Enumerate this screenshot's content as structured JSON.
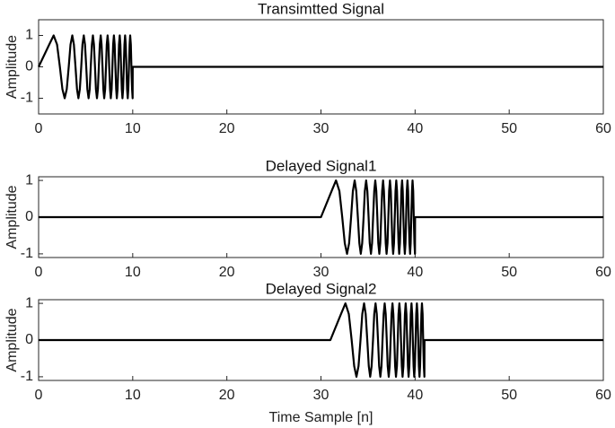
{
  "chart_data": [
    {
      "type": "line",
      "title": "Transimtted Signal",
      "ylabel": "Amplitude",
      "xlim": [
        0,
        60
      ],
      "ylim": [
        -1.5,
        1.5
      ],
      "xticks": [
        0,
        10,
        20,
        30,
        40,
        50,
        60
      ],
      "yticks": [
        -1,
        0,
        1
      ],
      "series": [
        {
          "color": "#000000",
          "x": [
            0,
            1.13,
            1.6,
            1.96,
            2.26,
            2.53,
            2.77,
            2.99,
            3.2,
            3.39,
            3.58,
            3.75,
            3.92,
            4.08,
            4.23,
            4.38,
            4.53,
            4.66,
            4.8,
            4.93,
            5.06,
            5.18,
            5.31,
            5.43,
            5.54,
            5.66,
            5.77,
            5.88,
            5.99,
            6.09,
            6.2,
            6.3,
            6.4,
            6.5,
            6.6,
            6.69,
            6.79,
            6.88,
            6.97,
            7.07,
            7.16,
            7.24,
            7.33,
            7.42,
            7.5,
            7.59,
            7.67,
            7.76,
            7.84,
            7.92,
            8,
            8.08,
            8.16,
            8.24,
            8.31,
            8.39,
            8.47,
            8.54,
            8.62,
            8.69,
            8.76,
            8.84,
            8.91,
            8.98,
            9.05,
            9.12,
            9.19,
            9.26,
            9.33,
            9.4,
            9.47,
            9.53,
            9.6,
            9.67,
            9.73,
            9.8,
            9.86,
            9.93,
            9.99,
            10,
            60
          ],
          "values": [
            0,
            0.71,
            1,
            0.71,
            0,
            -0.71,
            -1,
            -0.71,
            0,
            0.71,
            1,
            0.71,
            0,
            -0.71,
            -1,
            -0.71,
            0,
            0.71,
            1,
            0.71,
            0,
            -0.71,
            -1,
            -0.71,
            0,
            0.71,
            1,
            0.71,
            0,
            -0.71,
            -1,
            -0.71,
            0,
            0.71,
            1,
            0.71,
            0,
            -0.71,
            -1,
            -0.71,
            0,
            0.71,
            1,
            0.71,
            0,
            -0.71,
            -1,
            -0.71,
            0,
            0.71,
            1,
            0.71,
            0,
            -0.71,
            -1,
            -0.71,
            0,
            0.71,
            1,
            0.71,
            0,
            -0.71,
            -1,
            -0.71,
            0,
            0.71,
            1,
            0.71,
            0,
            -0.71,
            -1,
            -0.71,
            0,
            0.71,
            1,
            0.71,
            0,
            -0.71,
            -1,
            0,
            0
          ]
        }
      ]
    },
    {
      "type": "line",
      "title": "Delayed Signal1",
      "ylabel": "Amplitude",
      "xlim": [
        0,
        60
      ],
      "ylim": [
        -1.1,
        1.1
      ],
      "xticks": [
        0,
        10,
        20,
        30,
        40,
        50,
        60
      ],
      "yticks": [
        -1,
        0,
        1
      ],
      "series": [
        {
          "color": "#000000",
          "x": [
            0,
            30,
            31.13,
            31.6,
            31.96,
            32.26,
            32.53,
            32.77,
            32.99,
            33.2,
            33.39,
            33.58,
            33.75,
            33.92,
            34.08,
            34.23,
            34.38,
            34.53,
            34.66,
            34.8,
            34.93,
            35.06,
            35.18,
            35.31,
            35.43,
            35.54,
            35.66,
            35.77,
            35.88,
            35.99,
            36.09,
            36.2,
            36.3,
            36.4,
            36.5,
            36.6,
            36.69,
            36.79,
            36.88,
            36.97,
            37.07,
            37.16,
            37.24,
            37.33,
            37.42,
            37.5,
            37.59,
            37.67,
            37.76,
            37.84,
            37.92,
            38,
            38.08,
            38.16,
            38.24,
            38.31,
            38.39,
            38.47,
            38.54,
            38.62,
            38.69,
            38.76,
            38.84,
            38.91,
            38.98,
            39.05,
            39.12,
            39.19,
            39.26,
            39.33,
            39.4,
            39.47,
            39.53,
            39.6,
            39.67,
            39.73,
            39.8,
            39.86,
            39.93,
            39.99,
            40,
            60
          ],
          "values": [
            0,
            0,
            0.71,
            1,
            0.71,
            0,
            -0.71,
            -1,
            -0.71,
            0,
            0.71,
            1,
            0.71,
            0,
            -0.71,
            -1,
            -0.71,
            0,
            0.71,
            1,
            0.71,
            0,
            -0.71,
            -1,
            -0.71,
            0,
            0.71,
            1,
            0.71,
            0,
            -0.71,
            -1,
            -0.71,
            0,
            0.71,
            1,
            0.71,
            0,
            -0.71,
            -1,
            -0.71,
            0,
            0.71,
            1,
            0.71,
            0,
            -0.71,
            -1,
            -0.71,
            0,
            0.71,
            1,
            0.71,
            0,
            -0.71,
            -1,
            -0.71,
            0,
            0.71,
            1,
            0.71,
            0,
            -0.71,
            -1,
            -0.71,
            0,
            0.71,
            1,
            0.71,
            0,
            -0.71,
            -1,
            -0.71,
            0,
            0.71,
            1,
            0.71,
            0,
            -0.71,
            -1,
            0,
            0
          ]
        }
      ]
    },
    {
      "type": "line",
      "title": "Delayed Signal2",
      "ylabel": "Amplitude",
      "xlabel": "Time Sample [n]",
      "xlim": [
        0,
        60
      ],
      "ylim": [
        -1.1,
        1.1
      ],
      "xticks": [
        0,
        10,
        20,
        30,
        40,
        50,
        60
      ],
      "yticks": [
        -1,
        0,
        1
      ],
      "series": [
        {
          "color": "#000000",
          "x": [
            0,
            31,
            32.13,
            32.6,
            32.96,
            33.26,
            33.53,
            33.77,
            33.99,
            34.2,
            34.39,
            34.58,
            34.75,
            34.92,
            35.08,
            35.23,
            35.38,
            35.53,
            35.66,
            35.8,
            35.93,
            36.06,
            36.18,
            36.31,
            36.43,
            36.54,
            36.66,
            36.77,
            36.88,
            36.99,
            37.09,
            37.2,
            37.3,
            37.4,
            37.5,
            37.6,
            37.69,
            37.79,
            37.88,
            37.97,
            38.07,
            38.16,
            38.24,
            38.33,
            38.42,
            38.5,
            38.59,
            38.67,
            38.76,
            38.84,
            38.92,
            39,
            39.08,
            39.16,
            39.24,
            39.31,
            39.39,
            39.47,
            39.54,
            39.62,
            39.69,
            39.76,
            39.84,
            39.91,
            39.98,
            40.05,
            40.12,
            40.19,
            40.26,
            40.33,
            40.4,
            40.47,
            40.53,
            40.6,
            40.67,
            40.73,
            40.8,
            40.86,
            40.93,
            40.99,
            41,
            60
          ],
          "values": [
            0,
            0,
            0.71,
            1,
            0.71,
            0,
            -0.71,
            -1,
            -0.71,
            0,
            0.71,
            1,
            0.71,
            0,
            -0.71,
            -1,
            -0.71,
            0,
            0.71,
            1,
            0.71,
            0,
            -0.71,
            -1,
            -0.71,
            0,
            0.71,
            1,
            0.71,
            0,
            -0.71,
            -1,
            -0.71,
            0,
            0.71,
            1,
            0.71,
            0,
            -0.71,
            -1,
            -0.71,
            0,
            0.71,
            1,
            0.71,
            0,
            -0.71,
            -1,
            -0.71,
            0,
            0.71,
            1,
            0.71,
            0,
            -0.71,
            -1,
            -0.71,
            0,
            0.71,
            1,
            0.71,
            0,
            -0.71,
            -1,
            -0.71,
            0,
            0.71,
            1,
            0.71,
            0,
            -0.71,
            -1,
            -0.71,
            0,
            0.71,
            1,
            0.71,
            0,
            -0.71,
            -1,
            0,
            0
          ]
        }
      ]
    }
  ]
}
